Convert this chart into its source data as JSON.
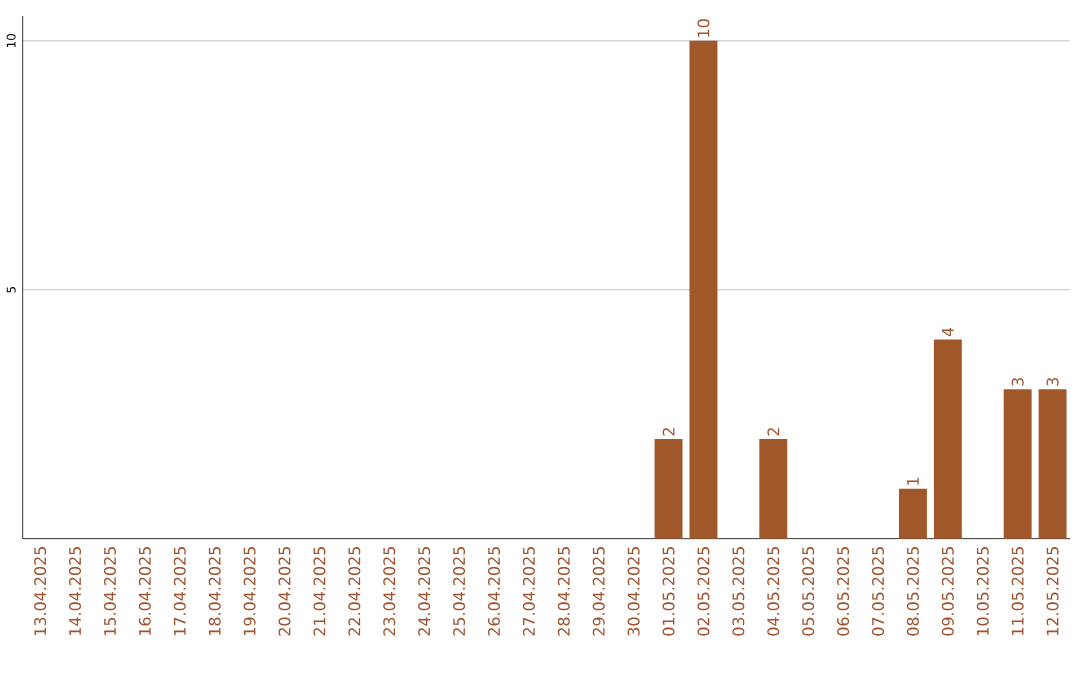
{
  "chart_data": {
    "type": "bar",
    "categories": [
      "13.04.2025",
      "14.04.2025",
      "15.04.2025",
      "16.04.2025",
      "17.04.2025",
      "18.04.2025",
      "19.04.2025",
      "20.04.2025",
      "21.04.2025",
      "22.04.2025",
      "23.04.2025",
      "24.04.2025",
      "25.04.2025",
      "26.04.2025",
      "27.04.2025",
      "28.04.2025",
      "29.04.2025",
      "30.04.2025",
      "01.05.2025",
      "02.05.2025",
      "03.05.2025",
      "04.05.2025",
      "05.05.2025",
      "06.05.2025",
      "07.05.2025",
      "08.05.2025",
      "09.05.2025",
      "10.05.2025",
      "11.05.2025",
      "12.05.2025"
    ],
    "values": [
      0,
      0,
      0,
      0,
      0,
      0,
      0,
      0,
      0,
      0,
      0,
      0,
      0,
      0,
      0,
      0,
      0,
      0,
      2,
      10,
      0,
      2,
      0,
      0,
      0,
      1,
      4,
      0,
      3,
      3
    ],
    "value_labels": [
      null,
      null,
      null,
      null,
      null,
      null,
      null,
      null,
      null,
      null,
      null,
      null,
      null,
      null,
      null,
      null,
      null,
      null,
      "2",
      "10",
      null,
      "2",
      null,
      null,
      null,
      "1",
      "4",
      null,
      "3",
      "3"
    ],
    "color": "#a0582b",
    "ylim": [
      0,
      10.5
    ],
    "yticks": [
      5,
      10
    ],
    "grid": "y"
  }
}
